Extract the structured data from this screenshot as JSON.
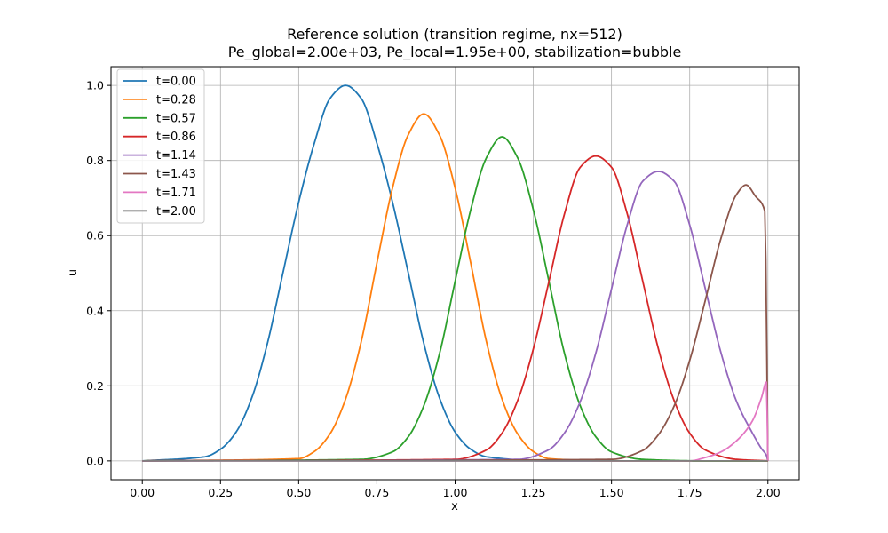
{
  "chart_data": {
    "type": "line",
    "title_line1": "Reference solution (transition regime, nx=512)",
    "title_line2": "Pe_global=2.00e+03, Pe_local=1.95e+00, stabilization=bubble",
    "xlabel": "x",
    "ylabel": "u",
    "xlim": [
      -0.1,
      2.1
    ],
    "ylim": [
      -0.05,
      1.05
    ],
    "xticks": [
      "0.00",
      "0.25",
      "0.50",
      "0.75",
      "1.00",
      "1.25",
      "1.50",
      "1.75",
      "2.00"
    ],
    "yticks": [
      "0.0",
      "0.2",
      "0.4",
      "0.6",
      "0.8",
      "1.0"
    ],
    "grid": true,
    "legend_position": "upper-left",
    "series": [
      {
        "name": "t=0.00",
        "color": "#1f77b4",
        "points": [
          [
            0.0,
            0.0
          ],
          [
            0.2,
            0.011
          ],
          [
            0.25,
            0.031
          ],
          [
            0.3,
            0.077
          ],
          [
            0.35,
            0.168
          ],
          [
            0.4,
            0.313
          ],
          [
            0.45,
            0.502
          ],
          [
            0.5,
            0.689
          ],
          [
            0.55,
            0.846
          ],
          [
            0.6,
            0.965
          ],
          [
            0.65,
            1.0
          ],
          [
            0.7,
            0.965
          ],
          [
            0.75,
            0.846
          ],
          [
            0.8,
            0.689
          ],
          [
            0.85,
            0.502
          ],
          [
            0.9,
            0.313
          ],
          [
            0.95,
            0.168
          ],
          [
            1.0,
            0.077
          ],
          [
            1.05,
            0.031
          ],
          [
            1.1,
            0.011
          ],
          [
            1.3,
            0.0
          ],
          [
            2.0,
            0.0
          ]
        ]
      },
      {
        "name": "t=0.28",
        "color": "#ff7f0e",
        "points": [
          [
            0.0,
            0.0
          ],
          [
            0.5,
            0.006
          ],
          [
            0.55,
            0.025
          ],
          [
            0.6,
            0.072
          ],
          [
            0.65,
            0.165
          ],
          [
            0.7,
            0.318
          ],
          [
            0.75,
            0.527
          ],
          [
            0.8,
            0.727
          ],
          [
            0.85,
            0.868
          ],
          [
            0.9,
            0.924
          ],
          [
            0.95,
            0.868
          ],
          [
            1.0,
            0.727
          ],
          [
            1.05,
            0.527
          ],
          [
            1.1,
            0.318
          ],
          [
            1.15,
            0.165
          ],
          [
            1.2,
            0.072
          ],
          [
            1.25,
            0.025
          ],
          [
            1.3,
            0.006
          ],
          [
            1.5,
            0.0
          ],
          [
            2.0,
            0.0
          ]
        ]
      },
      {
        "name": "t=0.57",
        "color": "#2ca02c",
        "points": [
          [
            0.0,
            0.0
          ],
          [
            0.7,
            0.004
          ],
          [
            0.8,
            0.024
          ],
          [
            0.85,
            0.064
          ],
          [
            0.9,
            0.147
          ],
          [
            0.95,
            0.285
          ],
          [
            1.0,
            0.478
          ],
          [
            1.05,
            0.669
          ],
          [
            1.1,
            0.807
          ],
          [
            1.15,
            0.863
          ],
          [
            1.2,
            0.807
          ],
          [
            1.25,
            0.669
          ],
          [
            1.3,
            0.478
          ],
          [
            1.35,
            0.285
          ],
          [
            1.4,
            0.147
          ],
          [
            1.45,
            0.064
          ],
          [
            1.5,
            0.024
          ],
          [
            1.6,
            0.004
          ],
          [
            1.8,
            0.0
          ],
          [
            2.0,
            0.0
          ]
        ]
      },
      {
        "name": "t=0.86",
        "color": "#d62728",
        "points": [
          [
            0.0,
            0.0
          ],
          [
            1.0,
            0.004
          ],
          [
            1.1,
            0.029
          ],
          [
            1.15,
            0.074
          ],
          [
            1.2,
            0.161
          ],
          [
            1.25,
            0.298
          ],
          [
            1.3,
            0.478
          ],
          [
            1.35,
            0.659
          ],
          [
            1.4,
            0.782
          ],
          [
            1.45,
            0.812
          ],
          [
            1.5,
            0.782
          ],
          [
            1.55,
            0.659
          ],
          [
            1.6,
            0.478
          ],
          [
            1.65,
            0.298
          ],
          [
            1.7,
            0.161
          ],
          [
            1.75,
            0.074
          ],
          [
            1.8,
            0.029
          ],
          [
            1.9,
            0.004
          ],
          [
            2.0,
            0.0
          ]
        ]
      },
      {
        "name": "t=1.14",
        "color": "#9467bd",
        "points": [
          [
            0.0,
            0.0
          ],
          [
            1.2,
            0.004
          ],
          [
            1.3,
            0.03
          ],
          [
            1.35,
            0.075
          ],
          [
            1.4,
            0.158
          ],
          [
            1.45,
            0.288
          ],
          [
            1.5,
            0.458
          ],
          [
            1.55,
            0.628
          ],
          [
            1.6,
            0.745
          ],
          [
            1.65,
            0.771
          ],
          [
            1.7,
            0.745
          ],
          [
            1.75,
            0.628
          ],
          [
            1.8,
            0.458
          ],
          [
            1.85,
            0.288
          ],
          [
            1.9,
            0.158
          ],
          [
            1.95,
            0.075
          ],
          [
            1.98,
            0.032
          ],
          [
            1.995,
            0.015
          ],
          [
            2.0,
            0.0
          ]
        ]
      },
      {
        "name": "t=1.43",
        "color": "#8c564b",
        "points": [
          [
            0.0,
            0.0
          ],
          [
            1.5,
            0.004
          ],
          [
            1.6,
            0.028
          ],
          [
            1.65,
            0.07
          ],
          [
            1.7,
            0.146
          ],
          [
            1.75,
            0.268
          ],
          [
            1.8,
            0.428
          ],
          [
            1.85,
            0.593
          ],
          [
            1.9,
            0.71
          ],
          [
            1.93,
            0.735
          ],
          [
            1.96,
            0.705
          ],
          [
            1.99,
            0.665
          ],
          [
            2.0,
            0.0
          ]
        ]
      },
      {
        "name": "t=1.71",
        "color": "#e377c2",
        "points": [
          [
            0.0,
            0.0
          ],
          [
            1.75,
            0.0
          ],
          [
            1.8,
            0.009
          ],
          [
            1.85,
            0.024
          ],
          [
            1.9,
            0.054
          ],
          [
            1.95,
            0.106
          ],
          [
            1.98,
            0.17
          ],
          [
            1.995,
            0.21
          ],
          [
            2.0,
            0.0
          ]
        ]
      },
      {
        "name": "t=2.00",
        "color": "#7f7f7f",
        "points": [
          [
            0.0,
            0.0
          ],
          [
            2.0,
            0.0
          ]
        ]
      }
    ]
  }
}
